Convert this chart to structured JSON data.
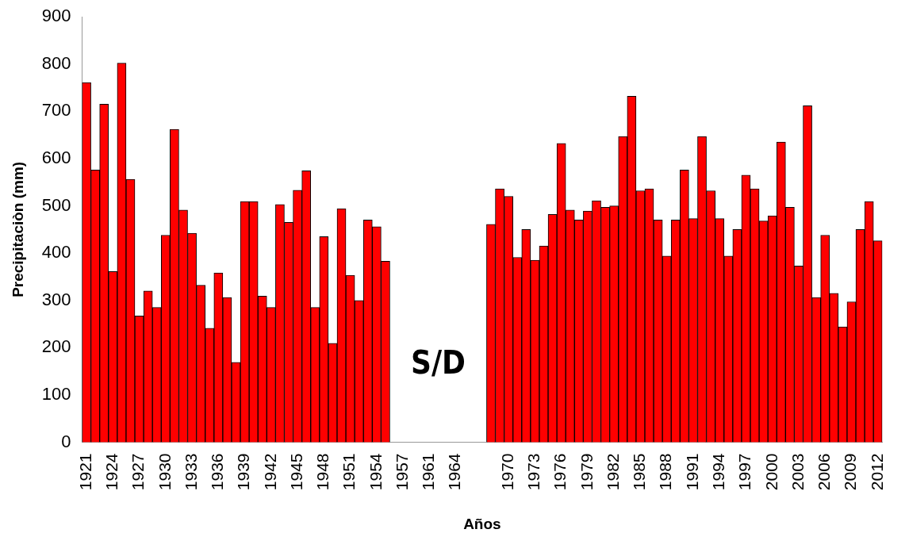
{
  "chart_data": {
    "type": "bar",
    "xlabel": "Años",
    "ylabel": "Precipitaciòn (mm)",
    "categories": [
      "1921",
      null,
      null,
      "1924",
      null,
      null,
      "1927",
      null,
      null,
      "1930",
      null,
      null,
      "1933",
      null,
      null,
      "1936",
      null,
      null,
      "1939",
      null,
      null,
      "1942",
      null,
      null,
      "1945",
      null,
      null,
      "1948",
      null,
      null,
      "1951",
      null,
      null,
      "1954",
      null,
      null,
      "1957",
      null,
      null,
      "1961",
      null,
      null,
      "1964",
      null,
      null,
      null,
      null,
      null,
      "1970",
      null,
      null,
      "1973",
      null,
      null,
      "1976",
      null,
      null,
      "1979",
      null,
      null,
      "1982",
      null,
      null,
      "1985",
      null,
      null,
      "1988",
      null,
      null,
      "1991",
      null,
      null,
      "1994",
      null,
      null,
      "1997",
      null,
      null,
      "2000",
      null,
      null,
      "2003",
      null,
      null,
      "2006",
      null,
      null,
      "2009",
      null,
      null,
      "2012"
    ],
    "values": [
      761,
      576,
      715,
      361,
      802,
      556,
      267,
      320,
      285,
      438,
      662,
      491,
      442,
      332,
      241,
      358,
      306,
      169,
      509,
      509,
      309,
      285,
      503,
      465,
      533,
      574,
      285,
      435,
      209,
      494,
      353,
      300,
      470,
      456,
      383,
      null,
      null,
      null,
      null,
      null,
      null,
      null,
      null,
      null,
      null,
      null,
      461,
      536,
      520,
      391,
      450,
      385,
      415,
      482,
      632,
      491,
      470,
      489,
      511,
      497,
      500,
      647,
      732,
      532,
      536,
      470,
      394,
      470,
      576,
      473,
      647,
      532,
      473,
      394,
      450,
      565,
      536,
      468,
      479,
      635,
      497,
      373,
      712,
      306,
      438,
      315,
      244,
      297,
      450,
      509,
      426
    ],
    "color": "#ff0000",
    "ylim": [
      0,
      900
    ],
    "yticks": [
      0,
      100,
      200,
      300,
      400,
      500,
      600,
      700,
      800,
      900
    ],
    "grid": false,
    "legend": false,
    "annotations": [
      "S/D"
    ]
  }
}
